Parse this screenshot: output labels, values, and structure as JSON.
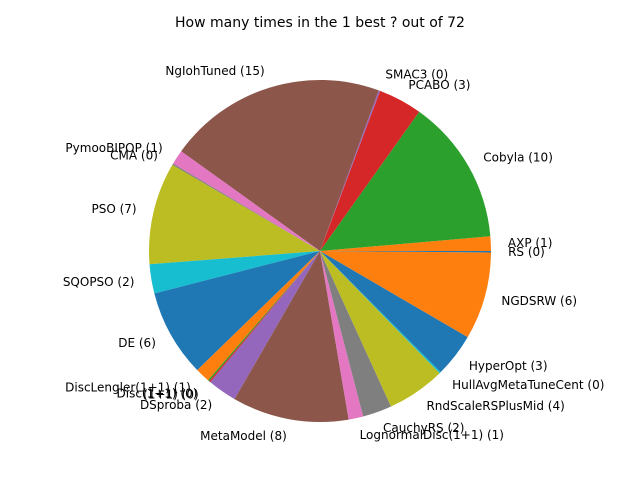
{
  "chart_data": {
    "type": "pie",
    "title": "How many times in the 1 best ? out of 72",
    "start_angle_deg": 0,
    "direction": "counterclockwise",
    "slices": [
      {
        "label": "AXP (1)",
        "value": 1,
        "color": "#ff7f0e"
      },
      {
        "label": "Cobyla (10)",
        "value": 10,
        "color": "#2ca02c"
      },
      {
        "label": "PCABO (3)",
        "value": 3,
        "color": "#d62728"
      },
      {
        "label": "SMAC3 (0)",
        "value": 0.1,
        "color": "#9467bd"
      },
      {
        "label": "NgIohTuned (15)",
        "value": 15,
        "color": "#8c564b"
      },
      {
        "label": "PymooBIPOP (1)",
        "value": 1,
        "color": "#e377c2"
      },
      {
        "label": "CMA (0)",
        "value": 0.1,
        "color": "#7f7f7f"
      },
      {
        "label": "PSO (7)",
        "value": 7,
        "color": "#bcbd22"
      },
      {
        "label": "SQOPSO (2)",
        "value": 2,
        "color": "#17becf"
      },
      {
        "label": "DE (6)",
        "value": 6,
        "color": "#1f77b4"
      },
      {
        "label": "DiscLengler(1+1) (1)",
        "value": 1,
        "color": "#ff7f0e"
      },
      {
        "label": "Disc(1+1) (0)",
        "value": 0.1,
        "color": "#2ca02c"
      },
      {
        "label": "(1+1) (0)",
        "value": 0.1,
        "color": "#d62728"
      },
      {
        "label": "DSproba (2)",
        "value": 2,
        "color": "#9467bd"
      },
      {
        "label": "MetaModel (8)",
        "value": 8,
        "color": "#8c564b"
      },
      {
        "label": "LognormalDisc(1+1) (1)",
        "value": 1,
        "color": "#e377c2"
      },
      {
        "label": "CauchyRS (2)",
        "value": 2,
        "color": "#7f7f7f"
      },
      {
        "label": "RndScaleRSPlusMid (4)",
        "value": 4,
        "color": "#bcbd22"
      },
      {
        "label": "HullAvgMetaTuneCent (0)",
        "value": 0.1,
        "color": "#17becf"
      },
      {
        "label": "HyperOpt (3)",
        "value": 3,
        "color": "#1f77b4"
      },
      {
        "label": "NGDSRW (6)",
        "value": 6,
        "color": "#ff7f0e"
      },
      {
        "label": "RS (0)",
        "value": 0.1,
        "color": "#1f77b4"
      }
    ]
  }
}
